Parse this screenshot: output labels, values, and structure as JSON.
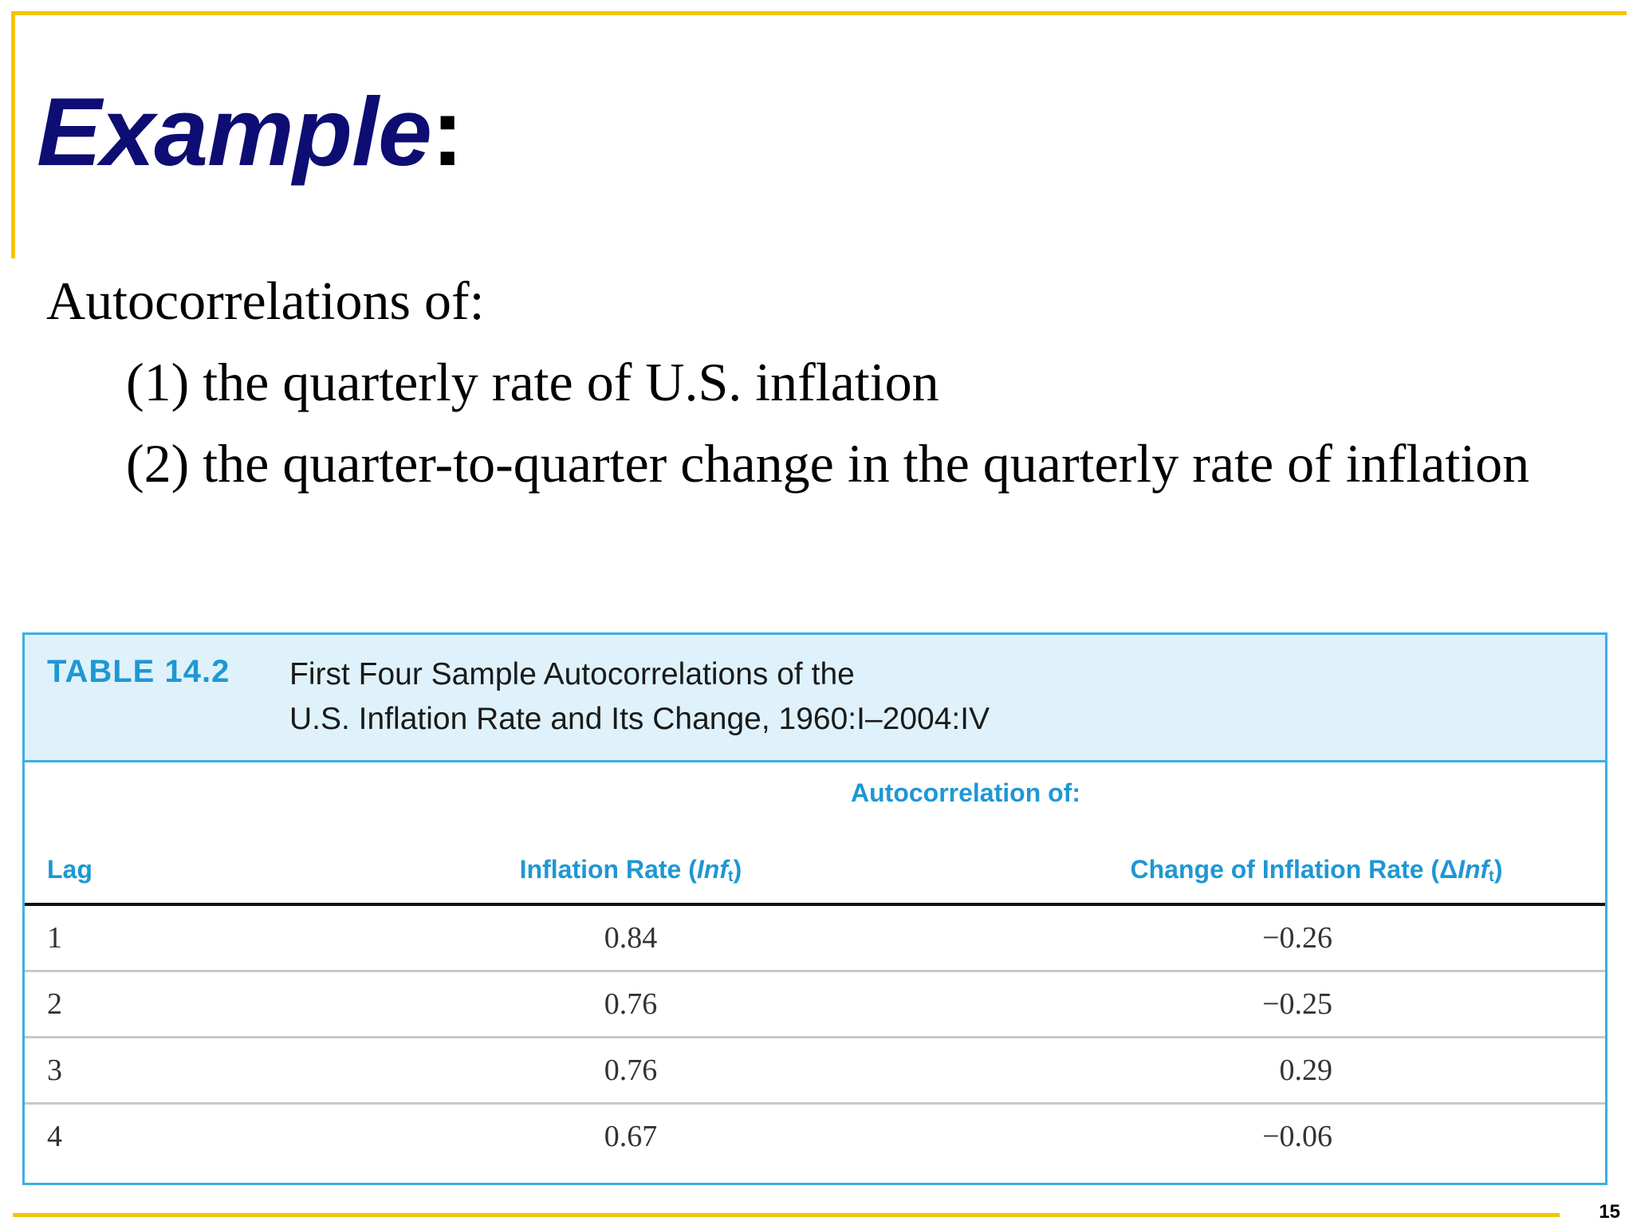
{
  "slide": {
    "title": "Example",
    "title_colon": ":",
    "page_number": "15",
    "accent_color": "#f5c400",
    "title_color": "#0d0d73"
  },
  "body": {
    "lead": "Autocorrelations of:",
    "items": [
      "(1) the quarterly rate of U.S. inflation",
      "(2) the quarter-to-quarter change in the quarterly rate of inflation"
    ]
  },
  "table": {
    "label": "TABLE 14.2",
    "caption_line1": "First Four Sample Autocorrelations of the",
    "caption_line2": "U.S. Inflation Rate and Its Change, 1960:I–2004:IV",
    "group_header": "Autocorrelation of:",
    "columns": {
      "lag": "Lag",
      "inf_prefix": "Inflation Rate (",
      "inf_var": "Inf",
      "inf_sub": "t",
      "inf_suffix": ")",
      "dinf_prefix": "Change of Inflation Rate (Δ",
      "dinf_var": "Inf",
      "dinf_sub": "t",
      "dinf_suffix": ")"
    },
    "rows": [
      {
        "lag": "1",
        "inf": "0.84",
        "dinf": "−0.26"
      },
      {
        "lag": "2",
        "inf": "0.76",
        "dinf": "−0.25"
      },
      {
        "lag": "3",
        "inf": "0.76",
        "dinf": "0.29"
      },
      {
        "lag": "4",
        "inf": "0.67",
        "dinf": "−0.06"
      }
    ],
    "border_color": "#3daee3",
    "header_bg": "#dff2fb",
    "label_color": "#1f97d4"
  }
}
